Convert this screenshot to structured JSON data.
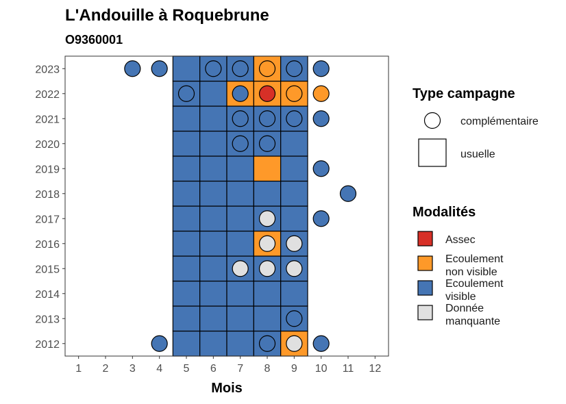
{
  "chart_data": {
    "type": "heatmap",
    "title": "L'Andouille à Roquebrune",
    "subtitle": "O9360001",
    "xlabel": "Mois",
    "ylabel": "",
    "x_ticks": [
      "1",
      "2",
      "3",
      "4",
      "5",
      "6",
      "7",
      "8",
      "9",
      "10",
      "11",
      "12"
    ],
    "y_ticks": [
      "2012",
      "2013",
      "2014",
      "2015",
      "2016",
      "2017",
      "2018",
      "2019",
      "2020",
      "2021",
      "2022",
      "2023"
    ],
    "xlim": [
      0.5,
      12.5
    ],
    "ylim": [
      2011.5,
      2023.5
    ],
    "grid": false,
    "legend_position": "right",
    "legend_type": {
      "title": "Type campagne",
      "items": [
        {
          "name": "complémentaire",
          "shape": "circle"
        },
        {
          "name": "usuelle",
          "shape": "square"
        }
      ]
    },
    "legend_modalites": {
      "title": "Modalités",
      "items": [
        {
          "name": "Assec",
          "lines": [
            "Assec"
          ],
          "color": "#d73027"
        },
        {
          "name": "Ecoulement non visible",
          "lines": [
            "Ecoulement",
            "non visible"
          ],
          "color": "#fe9929"
        },
        {
          "name": "Ecoulement visible",
          "lines": [
            "Ecoulement",
            "visible"
          ],
          "color": "#4575b4"
        },
        {
          "name": "Donnée manquante",
          "lines": [
            "Donnée",
            "manquante"
          ],
          "color": "#e0e0e0"
        }
      ]
    },
    "squares_usuelle": [
      {
        "year": 2012,
        "month": 5,
        "modalite": "Ecoulement visible"
      },
      {
        "year": 2012,
        "month": 6,
        "modalite": "Ecoulement visible"
      },
      {
        "year": 2012,
        "month": 7,
        "modalite": "Ecoulement visible"
      },
      {
        "year": 2012,
        "month": 8,
        "modalite": "Ecoulement visible"
      },
      {
        "year": 2012,
        "month": 9,
        "modalite": "Ecoulement non visible"
      },
      {
        "year": 2013,
        "month": 5,
        "modalite": "Ecoulement visible"
      },
      {
        "year": 2013,
        "month": 6,
        "modalite": "Ecoulement visible"
      },
      {
        "year": 2013,
        "month": 7,
        "modalite": "Ecoulement visible"
      },
      {
        "year": 2013,
        "month": 8,
        "modalite": "Ecoulement visible"
      },
      {
        "year": 2013,
        "month": 9,
        "modalite": "Ecoulement visible"
      },
      {
        "year": 2014,
        "month": 5,
        "modalite": "Ecoulement visible"
      },
      {
        "year": 2014,
        "month": 6,
        "modalite": "Ecoulement visible"
      },
      {
        "year": 2014,
        "month": 7,
        "modalite": "Ecoulement visible"
      },
      {
        "year": 2014,
        "month": 8,
        "modalite": "Ecoulement visible"
      },
      {
        "year": 2014,
        "month": 9,
        "modalite": "Ecoulement visible"
      },
      {
        "year": 2015,
        "month": 5,
        "modalite": "Ecoulement visible"
      },
      {
        "year": 2015,
        "month": 6,
        "modalite": "Ecoulement visible"
      },
      {
        "year": 2015,
        "month": 7,
        "modalite": "Ecoulement visible"
      },
      {
        "year": 2015,
        "month": 8,
        "modalite": "Ecoulement visible"
      },
      {
        "year": 2015,
        "month": 9,
        "modalite": "Ecoulement visible"
      },
      {
        "year": 2016,
        "month": 5,
        "modalite": "Ecoulement visible"
      },
      {
        "year": 2016,
        "month": 6,
        "modalite": "Ecoulement visible"
      },
      {
        "year": 2016,
        "month": 7,
        "modalite": "Ecoulement visible"
      },
      {
        "year": 2016,
        "month": 8,
        "modalite": "Ecoulement non visible"
      },
      {
        "year": 2016,
        "month": 9,
        "modalite": "Ecoulement visible"
      },
      {
        "year": 2017,
        "month": 5,
        "modalite": "Ecoulement visible"
      },
      {
        "year": 2017,
        "month": 6,
        "modalite": "Ecoulement visible"
      },
      {
        "year": 2017,
        "month": 7,
        "modalite": "Ecoulement visible"
      },
      {
        "year": 2017,
        "month": 8,
        "modalite": "Ecoulement visible"
      },
      {
        "year": 2017,
        "month": 9,
        "modalite": "Ecoulement visible"
      },
      {
        "year": 2018,
        "month": 5,
        "modalite": "Ecoulement visible"
      },
      {
        "year": 2018,
        "month": 6,
        "modalite": "Ecoulement visible"
      },
      {
        "year": 2018,
        "month": 7,
        "modalite": "Ecoulement visible"
      },
      {
        "year": 2018,
        "month": 8,
        "modalite": "Ecoulement visible"
      },
      {
        "year": 2018,
        "month": 9,
        "modalite": "Ecoulement visible"
      },
      {
        "year": 2019,
        "month": 5,
        "modalite": "Ecoulement visible"
      },
      {
        "year": 2019,
        "month": 6,
        "modalite": "Ecoulement visible"
      },
      {
        "year": 2019,
        "month": 7,
        "modalite": "Ecoulement visible"
      },
      {
        "year": 2019,
        "month": 8,
        "modalite": "Ecoulement non visible"
      },
      {
        "year": 2019,
        "month": 9,
        "modalite": "Ecoulement visible"
      },
      {
        "year": 2020,
        "month": 5,
        "modalite": "Ecoulement visible"
      },
      {
        "year": 2020,
        "month": 6,
        "modalite": "Ecoulement visible"
      },
      {
        "year": 2020,
        "month": 7,
        "modalite": "Ecoulement visible"
      },
      {
        "year": 2020,
        "month": 8,
        "modalite": "Ecoulement visible"
      },
      {
        "year": 2020,
        "month": 9,
        "modalite": "Ecoulement visible"
      },
      {
        "year": 2021,
        "month": 5,
        "modalite": "Ecoulement visible"
      },
      {
        "year": 2021,
        "month": 6,
        "modalite": "Ecoulement visible"
      },
      {
        "year": 2021,
        "month": 7,
        "modalite": "Ecoulement visible"
      },
      {
        "year": 2021,
        "month": 8,
        "modalite": "Ecoulement visible"
      },
      {
        "year": 2021,
        "month": 9,
        "modalite": "Ecoulement visible"
      },
      {
        "year": 2022,
        "month": 5,
        "modalite": "Ecoulement visible"
      },
      {
        "year": 2022,
        "month": 6,
        "modalite": "Ecoulement visible"
      },
      {
        "year": 2022,
        "month": 7,
        "modalite": "Ecoulement non visible"
      },
      {
        "year": 2022,
        "month": 8,
        "modalite": "Ecoulement non visible"
      },
      {
        "year": 2022,
        "month": 9,
        "modalite": "Ecoulement non visible"
      },
      {
        "year": 2023,
        "month": 5,
        "modalite": "Ecoulement visible"
      },
      {
        "year": 2023,
        "month": 6,
        "modalite": "Ecoulement visible"
      },
      {
        "year": 2023,
        "month": 7,
        "modalite": "Ecoulement visible"
      },
      {
        "year": 2023,
        "month": 8,
        "modalite": "Ecoulement non visible"
      },
      {
        "year": 2023,
        "month": 9,
        "modalite": "Ecoulement visible"
      }
    ],
    "points_complementaire": [
      {
        "year": 2023,
        "month": 3,
        "modalite": "Ecoulement visible"
      },
      {
        "year": 2023,
        "month": 4,
        "modalite": "Ecoulement visible"
      },
      {
        "year": 2023,
        "month": 6,
        "modalite": "Ecoulement visible"
      },
      {
        "year": 2023,
        "month": 7,
        "modalite": "Ecoulement visible"
      },
      {
        "year": 2023,
        "month": 8,
        "modalite": "Ecoulement non visible"
      },
      {
        "year": 2023,
        "month": 9,
        "modalite": "Ecoulement visible"
      },
      {
        "year": 2023,
        "month": 10,
        "modalite": "Ecoulement visible"
      },
      {
        "year": 2022,
        "month": 5,
        "modalite": "Ecoulement visible"
      },
      {
        "year": 2022,
        "month": 7,
        "modalite": "Ecoulement visible"
      },
      {
        "year": 2022,
        "month": 8,
        "modalite": "Assec"
      },
      {
        "year": 2022,
        "month": 9,
        "modalite": "Ecoulement non visible"
      },
      {
        "year": 2022,
        "month": 10,
        "modalite": "Ecoulement non visible"
      },
      {
        "year": 2021,
        "month": 7,
        "modalite": "Ecoulement visible"
      },
      {
        "year": 2021,
        "month": 8,
        "modalite": "Ecoulement visible"
      },
      {
        "year": 2021,
        "month": 9,
        "modalite": "Ecoulement visible"
      },
      {
        "year": 2021,
        "month": 10,
        "modalite": "Ecoulement visible"
      },
      {
        "year": 2020,
        "month": 7,
        "modalite": "Ecoulement visible"
      },
      {
        "year": 2020,
        "month": 8,
        "modalite": "Ecoulement visible"
      },
      {
        "year": 2019,
        "month": 10,
        "modalite": "Ecoulement visible"
      },
      {
        "year": 2018,
        "month": 11,
        "modalite": "Ecoulement visible"
      },
      {
        "year": 2017,
        "month": 8,
        "modalite": "Donnée manquante"
      },
      {
        "year": 2017,
        "month": 10,
        "modalite": "Ecoulement visible"
      },
      {
        "year": 2016,
        "month": 8,
        "modalite": "Donnée manquante"
      },
      {
        "year": 2016,
        "month": 9,
        "modalite": "Donnée manquante"
      },
      {
        "year": 2015,
        "month": 7,
        "modalite": "Donnée manquante"
      },
      {
        "year": 2015,
        "month": 8,
        "modalite": "Donnée manquante"
      },
      {
        "year": 2015,
        "month": 9,
        "modalite": "Donnée manquante"
      },
      {
        "year": 2013,
        "month": 9,
        "modalite": "Ecoulement visible"
      },
      {
        "year": 2012,
        "month": 4,
        "modalite": "Ecoulement visible"
      },
      {
        "year": 2012,
        "month": 8,
        "modalite": "Ecoulement visible"
      },
      {
        "year": 2012,
        "month": 9,
        "modalite": "Donnée manquante"
      },
      {
        "year": 2012,
        "month": 10,
        "modalite": "Ecoulement visible"
      }
    ]
  }
}
